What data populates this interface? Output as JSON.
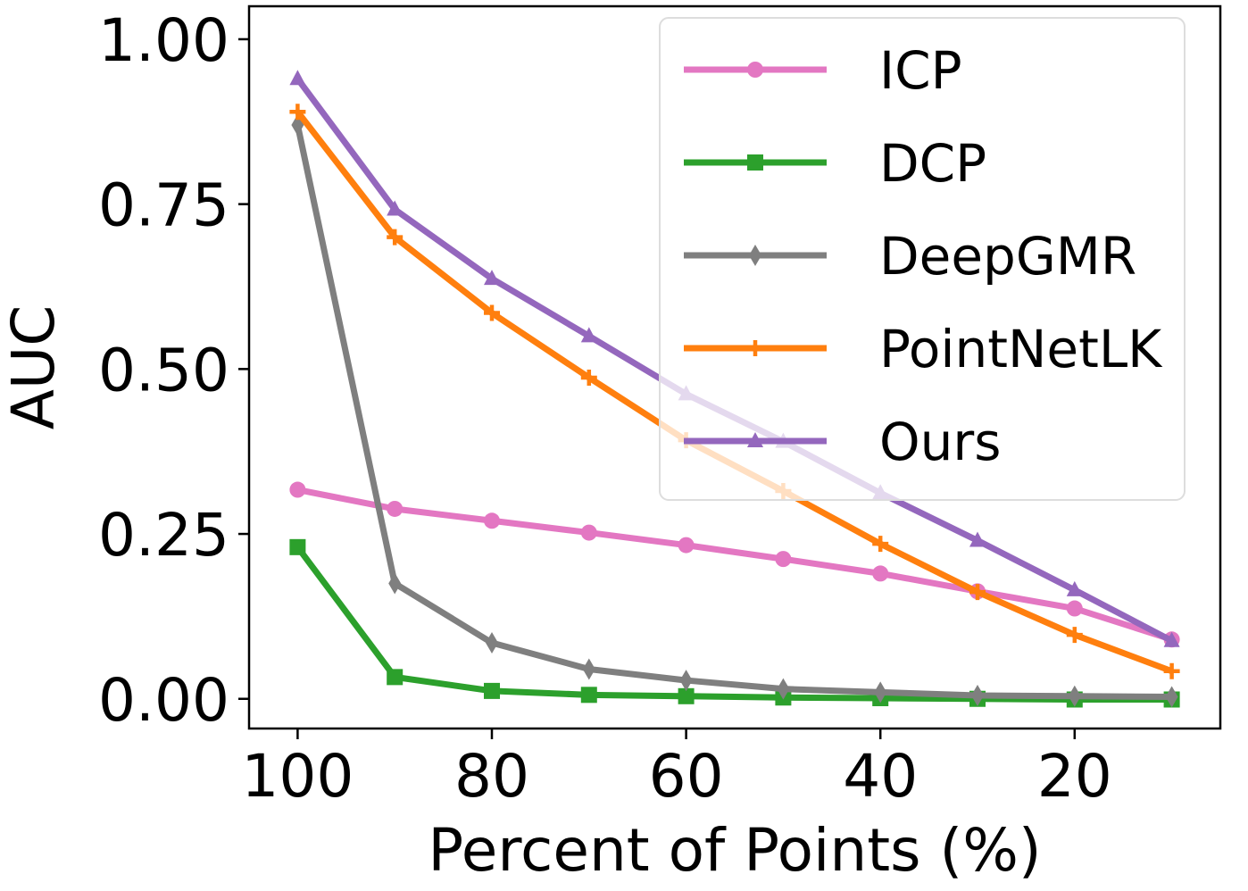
{
  "chart_data": {
    "type": "line",
    "xlabel": "Percent of Points (%)",
    "ylabel": "AUC",
    "x": [
      100,
      90,
      80,
      70,
      60,
      50,
      40,
      30,
      20,
      10
    ],
    "xlim": [
      105,
      5
    ],
    "ylim": [
      -0.045,
      1.05
    ],
    "xticks": [
      100,
      80,
      60,
      40,
      20
    ],
    "yticks": [
      0.0,
      0.25,
      0.5,
      0.75,
      1.0
    ],
    "xtick_labels": [
      "100",
      "80",
      "60",
      "40",
      "20"
    ],
    "ytick_labels": [
      "0.00",
      "0.25",
      "0.50",
      "0.75",
      "1.00"
    ],
    "grid": false,
    "legend_position": "top-right",
    "series": [
      {
        "name": "ICP",
        "color": "#e377c2",
        "marker": "circle",
        "values": [
          0.317,
          0.288,
          0.27,
          0.252,
          0.233,
          0.212,
          0.19,
          0.163,
          0.137,
          0.09
        ]
      },
      {
        "name": "DCP",
        "color": "#2ca02c",
        "marker": "square",
        "values": [
          0.23,
          0.033,
          0.012,
          0.006,
          0.004,
          0.002,
          0.001,
          0.0,
          -0.001,
          -0.001
        ]
      },
      {
        "name": "DeepGMR",
        "color": "#7f7f7f",
        "marker": "diamond",
        "values": [
          0.87,
          0.175,
          0.085,
          0.045,
          0.028,
          0.015,
          0.01,
          0.005,
          0.004,
          0.003
        ]
      },
      {
        "name": "PointNetLK",
        "color": "#ff7f0e",
        "marker": "plus",
        "values": [
          0.89,
          0.7,
          0.585,
          0.487,
          0.392,
          0.315,
          0.235,
          0.162,
          0.097,
          0.042
        ]
      },
      {
        "name": "Ours",
        "color": "#9467bd",
        "marker": "triangle",
        "values": [
          0.94,
          0.742,
          0.637,
          0.55,
          0.462,
          0.39,
          0.312,
          0.24,
          0.165,
          0.088
        ]
      }
    ]
  }
}
